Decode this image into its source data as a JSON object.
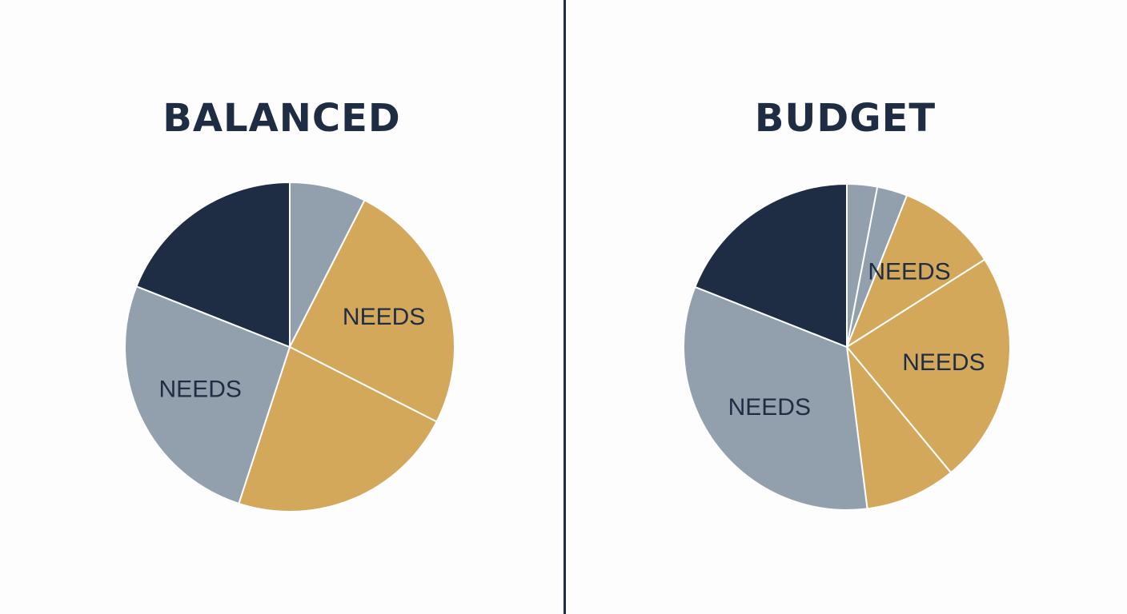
{
  "colors": {
    "navy": "#1e2d44",
    "slate": "#929fac",
    "gold": "#d3a85b",
    "divider": "#1e2d44",
    "background": "#fdfdfd"
  },
  "chart_data": [
    {
      "type": "pie",
      "title": "BALANCED",
      "slices": [
        {
          "label": "",
          "value": 7.5,
          "color": "slate"
        },
        {
          "label": "NEEDS",
          "value": 25,
          "color": "gold"
        },
        {
          "label": "",
          "value": 22.5,
          "color": "gold"
        },
        {
          "label": "NEEDS",
          "value": 26,
          "color": "slate"
        },
        {
          "label": "",
          "value": 19,
          "color": "navy"
        }
      ]
    },
    {
      "type": "pie",
      "title": "BUDGET",
      "slices": [
        {
          "label": "",
          "value": 3,
          "color": "slate"
        },
        {
          "label": "",
          "value": 3,
          "color": "slate"
        },
        {
          "label": "NEEDS",
          "value": 10,
          "color": "gold"
        },
        {
          "label": "NEEDS",
          "value": 23,
          "color": "gold"
        },
        {
          "label": "",
          "value": 9,
          "color": "gold"
        },
        {
          "label": "NEEDS",
          "value": 33,
          "color": "slate"
        },
        {
          "label": "",
          "value": 19,
          "color": "navy"
        }
      ]
    }
  ]
}
